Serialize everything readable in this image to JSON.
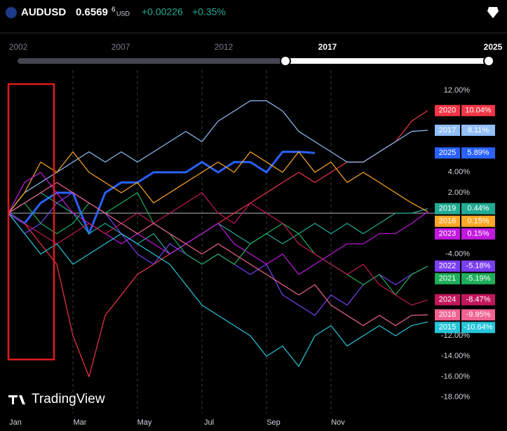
{
  "header": {
    "symbol": "AUDUSD",
    "price_main": "0.6569",
    "price_fraction": "6",
    "quote": "USD",
    "change": "+0.00226",
    "change_pct": "+0.35%"
  },
  "range_selector": {
    "years": [
      "2002",
      "2007",
      "2012",
      "2017",
      "2025"
    ]
  },
  "branding": "TradingView",
  "chart_data": {
    "type": "line",
    "categories": [
      "Jan",
      null,
      null,
      null,
      "Mar",
      null,
      null,
      null,
      "May",
      null,
      null,
      null,
      "Jul",
      null,
      null,
      null,
      "Sep",
      null,
      null,
      null,
      "Nov",
      null,
      null,
      null,
      null,
      null,
      null
    ],
    "ylim": [
      -19.6,
      14
    ],
    "yticks": [
      {
        "value": 12,
        "label": "12.00%"
      },
      {
        "value": 4,
        "label": "4.00%"
      },
      {
        "value": 2,
        "label": "2.00%"
      },
      {
        "value": -4,
        "label": "-4.00%"
      },
      {
        "value": -12,
        "label": "-12.00%"
      },
      {
        "value": -14,
        "label": "-14.00%"
      },
      {
        "value": -16,
        "label": "-16.00%"
      },
      {
        "value": -18,
        "label": "-18.00%"
      }
    ],
    "series": [
      {
        "name": "2020",
        "color": "#f23645",
        "values": [
          0,
          -1,
          -3,
          -5,
          -12,
          -16,
          -10,
          -8,
          -6,
          -5,
          -4,
          -3,
          -2,
          -1,
          0,
          1,
          2,
          3,
          4,
          3,
          4,
          5,
          5,
          6,
          7,
          9,
          10.04
        ],
        "value_labels": [
          null,
          null,
          null,
          null,
          null,
          null,
          null,
          null,
          null,
          null,
          null,
          null,
          null,
          null,
          null,
          null,
          null,
          null,
          null,
          null,
          null,
          null,
          null,
          null,
          null,
          null,
          "10.04%"
        ]
      },
      {
        "name": "2017",
        "color": "#90bff9",
        "values": [
          0,
          2,
          3,
          4,
          5,
          6,
          5,
          6,
          5,
          6,
          7,
          8,
          7,
          9,
          10,
          11,
          11,
          10,
          8,
          7,
          6,
          5,
          5,
          6,
          7,
          8,
          8.11
        ],
        "value_labels": [
          null,
          null,
          null,
          null,
          null,
          null,
          null,
          null,
          null,
          null,
          null,
          null,
          null,
          null,
          null,
          null,
          null,
          null,
          null,
          null,
          null,
          null,
          null,
          null,
          null,
          null,
          "8.11%"
        ]
      },
      {
        "name": "2025",
        "color": "#2962ff",
        "values": [
          0,
          -1,
          1,
          2,
          2,
          -2,
          2,
          3,
          3,
          4,
          4,
          4,
          5,
          4,
          5,
          5,
          4,
          6,
          6,
          5.89,
          null,
          null,
          null,
          null,
          null,
          null,
          null
        ],
        "value_labels": [
          null,
          null,
          null,
          null,
          null,
          null,
          null,
          null,
          null,
          null,
          null,
          null,
          null,
          null,
          null,
          null,
          null,
          null,
          null,
          "5.89%",
          null,
          null,
          null,
          null,
          null,
          null,
          null
        ]
      },
      {
        "name": "2019",
        "color": "#22ab94",
        "values": [
          0,
          1,
          2,
          1,
          0,
          -2,
          -1,
          -2,
          -3,
          -2,
          -4,
          -3,
          -2,
          -1,
          -2,
          -3,
          -2,
          -3,
          -2,
          -1,
          -2,
          -1,
          -2,
          -1,
          0,
          0,
          0.44
        ],
        "value_labels": [
          null,
          null,
          null,
          null,
          null,
          null,
          null,
          null,
          null,
          null,
          null,
          null,
          null,
          null,
          null,
          null,
          null,
          null,
          null,
          null,
          null,
          null,
          null,
          null,
          null,
          null,
          "0.44%"
        ]
      },
      {
        "name": "2016",
        "color": "#ffa726",
        "values": [
          0,
          2,
          5,
          4,
          6,
          4,
          3,
          2,
          3,
          1,
          2,
          3,
          4,
          5,
          4,
          6,
          5,
          4,
          6,
          4,
          5,
          3,
          4,
          3,
          2,
          1,
          0.15
        ],
        "value_labels": [
          null,
          null,
          null,
          null,
          null,
          null,
          null,
          null,
          null,
          null,
          null,
          null,
          null,
          null,
          null,
          null,
          null,
          null,
          null,
          null,
          null,
          null,
          null,
          null,
          null,
          null,
          "0.15%"
        ]
      },
      {
        "name": "2023",
        "color": "#c218e0",
        "values": [
          0,
          3,
          4,
          2,
          0,
          -1,
          -2,
          -3,
          -2,
          -3,
          -4,
          -3,
          -2,
          -1,
          -3,
          -4,
          -5,
          -4,
          -6,
          -5,
          -4,
          -3,
          -3,
          -2,
          -2,
          -1,
          0.15
        ],
        "value_labels": [
          null,
          null,
          null,
          null,
          null,
          null,
          null,
          null,
          null,
          null,
          null,
          null,
          null,
          null,
          null,
          null,
          null,
          null,
          null,
          null,
          null,
          null,
          null,
          null,
          null,
          null,
          "0.15%"
        ]
      },
      {
        "name": "2022",
        "color": "#7b3ff2",
        "values": [
          0,
          -2,
          -1,
          1,
          2,
          1,
          0,
          -2,
          -4,
          -5,
          -3,
          -4,
          -5,
          -4,
          -5,
          -6,
          -5,
          -8,
          -9,
          -10,
          -8,
          -9,
          -7,
          -6,
          -7,
          -6,
          -5.18
        ],
        "value_labels": [
          null,
          null,
          null,
          null,
          null,
          null,
          null,
          null,
          null,
          null,
          null,
          null,
          null,
          null,
          null,
          null,
          null,
          null,
          null,
          null,
          null,
          null,
          null,
          null,
          null,
          null,
          "-5.18%"
        ]
      },
      {
        "name": "2021",
        "color": "#1fae5a",
        "values": [
          0,
          1,
          -1,
          -2,
          -1,
          1,
          0,
          1,
          2,
          -1,
          -2,
          -4,
          -5,
          -4,
          -5,
          -3,
          -2,
          -1,
          -2,
          -4,
          -5,
          -6,
          -7,
          -6,
          -8,
          -6,
          -5.19
        ],
        "value_labels": [
          null,
          null,
          null,
          null,
          null,
          null,
          null,
          null,
          null,
          null,
          null,
          null,
          null,
          null,
          null,
          null,
          null,
          null,
          null,
          null,
          null,
          null,
          null,
          null,
          null,
          null,
          "-5.19%"
        ]
      },
      {
        "name": "2024",
        "color": "#c2185b",
        "values": [
          0,
          -1,
          -2,
          -3,
          -2,
          -1,
          -2,
          -1,
          0,
          -1,
          0,
          1,
          2,
          0,
          -1,
          1,
          0,
          -1,
          -3,
          -4,
          -5,
          -6,
          -5,
          -7,
          -8,
          -9,
          -8.47
        ],
        "value_labels": [
          null,
          null,
          null,
          null,
          null,
          null,
          null,
          null,
          null,
          null,
          null,
          null,
          null,
          null,
          null,
          null,
          null,
          null,
          null,
          null,
          null,
          null,
          null,
          null,
          null,
          null,
          "-8.47%"
        ]
      },
      {
        "name": "2018",
        "color": "#f06292",
        "values": [
          0,
          1,
          2,
          3,
          2,
          1,
          0,
          -1,
          -2,
          -1,
          -2,
          -3,
          -4,
          -3,
          -4,
          -5,
          -6,
          -7,
          -8,
          -7,
          -9,
          -10,
          -11,
          -10,
          -11,
          -10,
          -9.95
        ],
        "value_labels": [
          null,
          null,
          null,
          null,
          null,
          null,
          null,
          null,
          null,
          null,
          null,
          null,
          null,
          null,
          null,
          null,
          null,
          null,
          null,
          null,
          null,
          null,
          null,
          null,
          null,
          null,
          "-9.95%"
        ]
      },
      {
        "name": "2015",
        "color": "#26c6da",
        "values": [
          0,
          -2,
          -4,
          -3,
          -5,
          -4,
          -3,
          -2,
          -3,
          -4,
          -5,
          -7,
          -9,
          -10,
          -11,
          -12,
          -14,
          -13,
          -15,
          -12,
          -11,
          -13,
          -12,
          -11,
          -12,
          -11,
          -10.64
        ],
        "value_labels": [
          null,
          null,
          null,
          null,
          null,
          null,
          null,
          null,
          null,
          null,
          null,
          null,
          null,
          null,
          null,
          null,
          null,
          null,
          null,
          null,
          null,
          null,
          null,
          null,
          null,
          null,
          "-10.64%"
        ]
      }
    ]
  }
}
